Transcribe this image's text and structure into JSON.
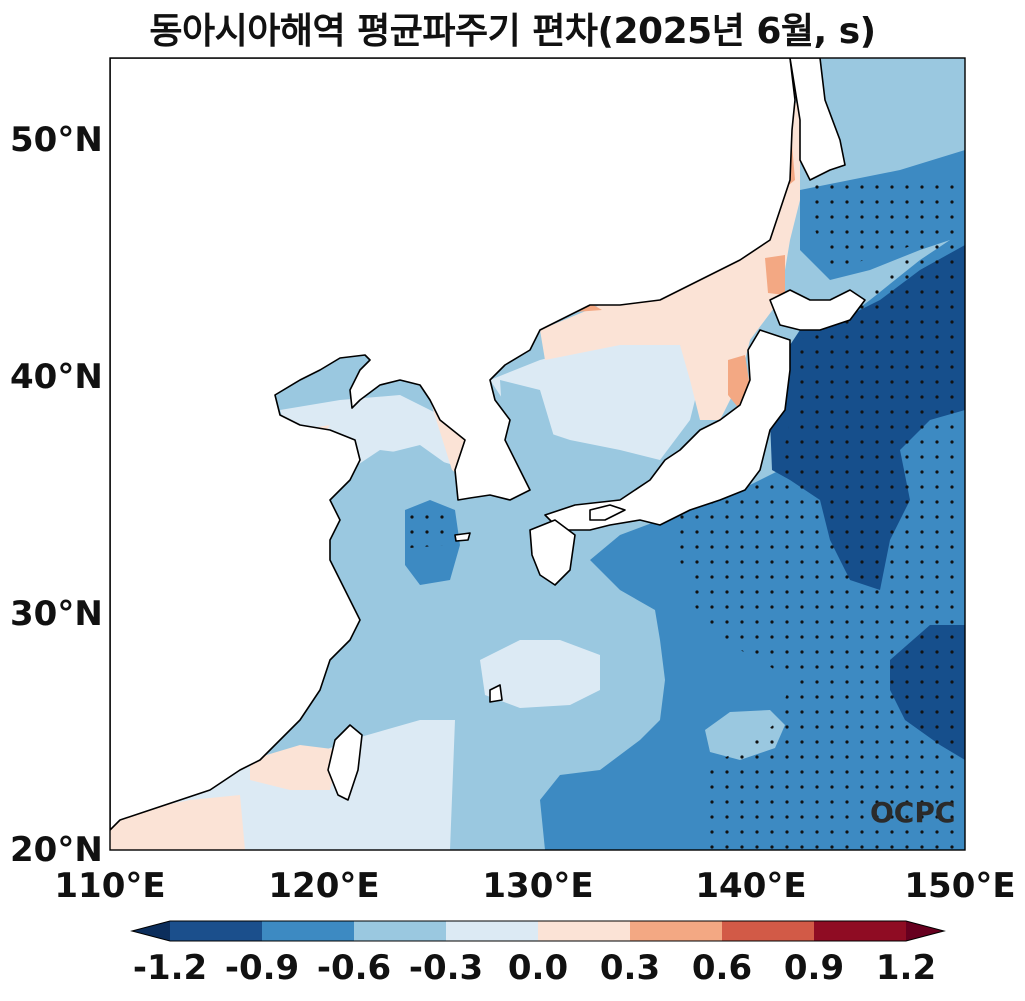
{
  "title": "동아시아해역 평균파주기 편차(2025년 6월, s)",
  "watermark": "OCPC",
  "axes": {
    "x_ticks": [
      "110°E",
      "120°E",
      "130°E",
      "140°E",
      "150°E"
    ],
    "y_ticks": [
      "50°N",
      "40°N",
      "30°N",
      "20°N"
    ],
    "lon_range": [
      110,
      150
    ],
    "lat_range": [
      20,
      53.5
    ]
  },
  "colorbar": {
    "ticks": [
      "-1.2",
      "-0.9",
      "-0.6",
      "-0.3",
      "0.0",
      "0.3",
      "0.6",
      "0.9",
      "1.2"
    ],
    "colors": [
      "#1b4f8c",
      "#3d8ac2",
      "#9ac8e0",
      "#dceaf4",
      "#fbe3d6",
      "#f3a883",
      "#d25a47",
      "#8f0c23"
    ],
    "extend": "both"
  },
  "palette": {
    "neg_strong": "#164f8c",
    "neg_mid": "#3d8ac2",
    "neg_light": "#9ac8e0",
    "neg_faint": "#dceaf4",
    "pos_faint": "#fbe3d6",
    "pos_light": "#f3a883",
    "land": "#ffffff",
    "coast": "#000000"
  }
}
